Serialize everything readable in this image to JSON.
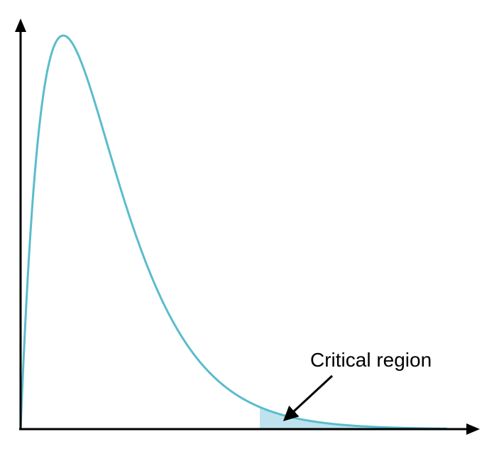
{
  "diagram": {
    "type": "right-skewed distribution curve with shaded critical region",
    "annotation": "Critical region",
    "colors": {
      "curve": "#5bbccc",
      "critical_fill": "#bfe3ee",
      "axes": "#000000",
      "text": "#000000"
    }
  }
}
